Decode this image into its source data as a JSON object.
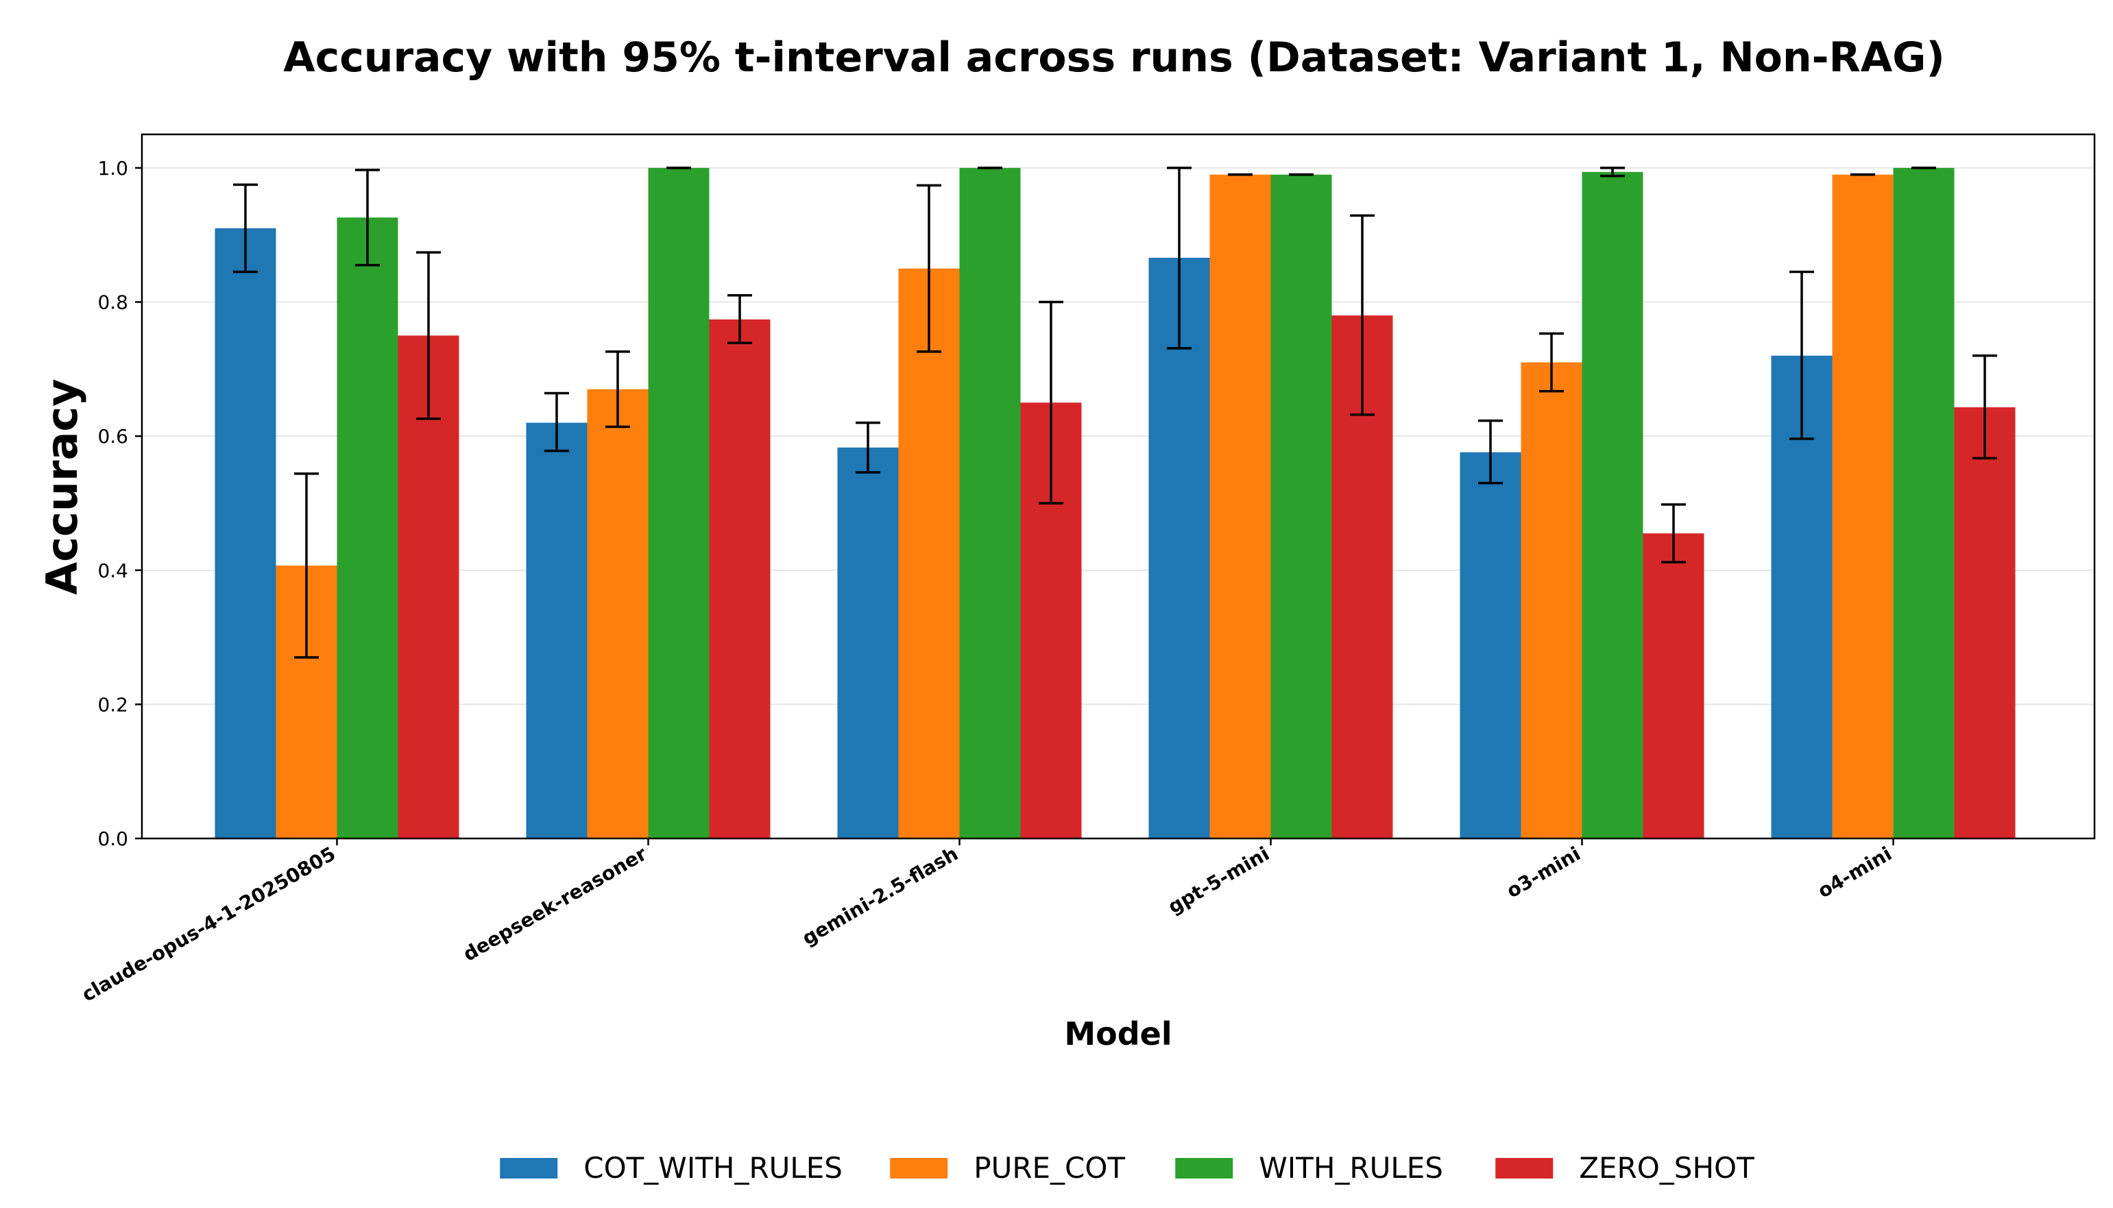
{
  "chart_data": {
    "type": "bar",
    "title": "Accuracy with 95% t-interval across runs (Dataset: Variant 1, Non-RAG)",
    "xlabel": "Model",
    "ylabel": "Accuracy",
    "ylim": [
      0,
      1.05
    ],
    "yticks": [
      "0.0",
      "0.2",
      "0.4",
      "0.6",
      "0.8",
      "1.0"
    ],
    "grid": true,
    "legend_position": "bottom-center",
    "categories": [
      "claude-opus-4-1-20250805",
      "deepseek-reasoner",
      "gemini-2.5-flash",
      "gpt-5-mini",
      "o3-mini",
      "o4-mini"
    ],
    "series": [
      {
        "name": "COT_WITH_RULES",
        "color": "#1f77b4",
        "values": [
          0.91,
          0.62,
          0.583,
          0.866,
          0.576,
          0.72
        ],
        "ci_low": [
          0.845,
          0.578,
          0.546,
          0.731,
          0.53,
          0.596
        ],
        "ci_high": [
          0.975,
          0.664,
          0.62,
          1.0,
          0.623,
          0.845
        ]
      },
      {
        "name": "PURE_COT",
        "color": "#ff7f0e",
        "values": [
          0.407,
          0.67,
          0.85,
          0.99,
          0.71,
          0.99
        ],
        "ci_low": [
          0.27,
          0.614,
          0.726,
          0.99,
          0.667,
          0.99
        ],
        "ci_high": [
          0.544,
          0.726,
          0.974,
          0.99,
          0.753,
          0.99
        ]
      },
      {
        "name": "WITH_RULES",
        "color": "#2ca02c",
        "values": [
          0.926,
          1.0,
          1.0,
          0.99,
          0.994,
          1.0
        ],
        "ci_low": [
          0.855,
          1.0,
          1.0,
          0.99,
          0.988,
          1.0
        ],
        "ci_high": [
          0.997,
          1.0,
          1.0,
          0.99,
          1.0,
          1.0
        ]
      },
      {
        "name": "ZERO_SHOT",
        "color": "#d62728",
        "values": [
          0.75,
          0.774,
          0.65,
          0.78,
          0.455,
          0.643
        ],
        "ci_low": [
          0.626,
          0.739,
          0.5,
          0.632,
          0.412,
          0.567
        ],
        "ci_high": [
          0.874,
          0.81,
          0.8,
          0.929,
          0.498,
          0.72
        ]
      }
    ]
  }
}
